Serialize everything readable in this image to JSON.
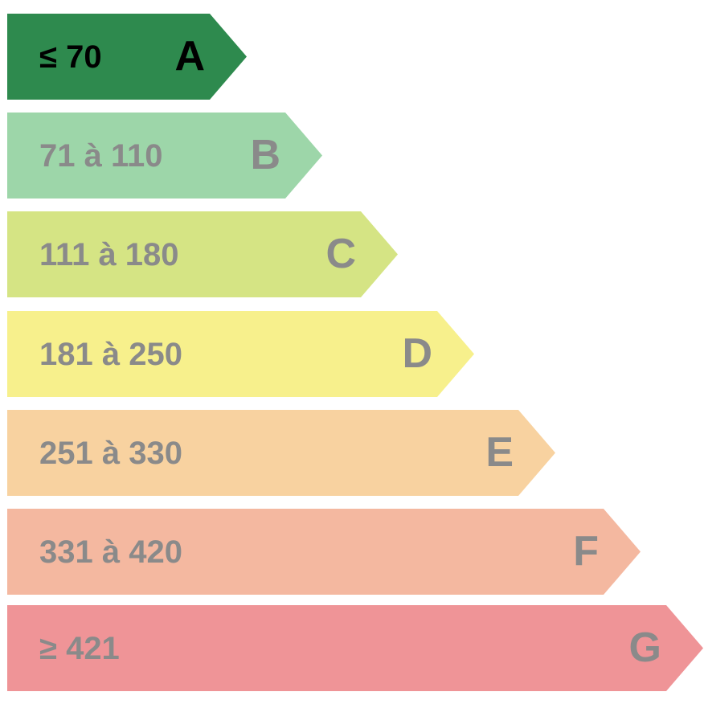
{
  "bands": [
    {
      "range": "≤ 70",
      "letter": "A",
      "color": "#2e8a4e",
      "text_color": "#000000"
    },
    {
      "range": "71 à 110",
      "letter": "B",
      "color": "#9dd6a9",
      "text_color": "#8a8a8a"
    },
    {
      "range": "111 à 180",
      "letter": "C",
      "color": "#d5e484",
      "text_color": "#8a8a8a"
    },
    {
      "range": "181 à 250",
      "letter": "D",
      "color": "#f7f08c",
      "text_color": "#8a8a8a"
    },
    {
      "range": "251 à 330",
      "letter": "E",
      "color": "#f8d2a0",
      "text_color": "#8a8a8a"
    },
    {
      "range": "331 à 420",
      "letter": "F",
      "color": "#f4b8a0",
      "text_color": "#8a8a8a"
    },
    {
      "range": "≥ 421",
      "letter": "G",
      "color": "#ef9497",
      "text_color": "#8a8a8a"
    }
  ]
}
